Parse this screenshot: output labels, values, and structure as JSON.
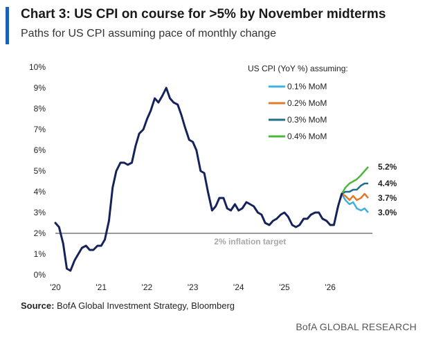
{
  "header": {
    "title": "Chart 3: US CPI on course for >5% by November midterms",
    "subtitle": "Paths for US CPI assuming pace of monthly change"
  },
  "footer": {
    "source_label": "Source:",
    "source_text": " BofA Global Investment Strategy, Bloomberg",
    "brand": "BofA GLOBAL RESEARCH"
  },
  "chart_data": {
    "type": "line",
    "x_range": [
      2020.0,
      2026.92
    ],
    "ylim": [
      0,
      10
    ],
    "y_ticks": [
      0,
      1,
      2,
      3,
      4,
      5,
      6,
      7,
      8,
      9,
      10
    ],
    "y_tick_labels": [
      "0%",
      "1%",
      "2%",
      "3%",
      "4%",
      "5%",
      "6%",
      "7%",
      "8%",
      "9%",
      "10%"
    ],
    "x_ticks": [
      2020,
      2021,
      2022,
      2023,
      2024,
      2025,
      2026
    ],
    "x_tick_labels": [
      "'20",
      "'21",
      "'22",
      "'23",
      "'24",
      "'25",
      "'26"
    ],
    "legend_title": "US CPI (YoY %) assuming:",
    "legend_position": "top-right",
    "grid": false,
    "reference_line": {
      "value": 2,
      "label": "2% inflation target",
      "color": "#999999"
    },
    "historical": {
      "color": "#15235a",
      "points": [
        [
          2020.0,
          2.5
        ],
        [
          2020.08,
          2.3
        ],
        [
          2020.17,
          1.5
        ],
        [
          2020.25,
          0.3
        ],
        [
          2020.33,
          0.2
        ],
        [
          2020.42,
          0.7
        ],
        [
          2020.5,
          1.0
        ],
        [
          2020.58,
          1.3
        ],
        [
          2020.67,
          1.4
        ],
        [
          2020.75,
          1.2
        ],
        [
          2020.83,
          1.2
        ],
        [
          2020.92,
          1.4
        ],
        [
          2021.0,
          1.4
        ],
        [
          2021.08,
          1.7
        ],
        [
          2021.17,
          2.6
        ],
        [
          2021.25,
          4.2
        ],
        [
          2021.33,
          5.0
        ],
        [
          2021.42,
          5.4
        ],
        [
          2021.5,
          5.4
        ],
        [
          2021.58,
          5.3
        ],
        [
          2021.67,
          5.4
        ],
        [
          2021.75,
          6.2
        ],
        [
          2021.83,
          6.8
        ],
        [
          2021.92,
          7.0
        ],
        [
          2022.0,
          7.5
        ],
        [
          2022.08,
          7.9
        ],
        [
          2022.17,
          8.5
        ],
        [
          2022.25,
          8.3
        ],
        [
          2022.33,
          8.6
        ],
        [
          2022.42,
          9.0
        ],
        [
          2022.5,
          8.5
        ],
        [
          2022.58,
          8.3
        ],
        [
          2022.67,
          8.2
        ],
        [
          2022.75,
          7.7
        ],
        [
          2022.83,
          7.1
        ],
        [
          2022.92,
          6.5
        ],
        [
          2023.0,
          6.4
        ],
        [
          2023.08,
          6.0
        ],
        [
          2023.17,
          5.0
        ],
        [
          2023.25,
          4.9
        ],
        [
          2023.33,
          4.0
        ],
        [
          2023.42,
          3.1
        ],
        [
          2023.5,
          3.3
        ],
        [
          2023.58,
          3.7
        ],
        [
          2023.67,
          3.7
        ],
        [
          2023.75,
          3.2
        ],
        [
          2023.83,
          3.1
        ],
        [
          2023.92,
          3.4
        ],
        [
          2024.0,
          3.1
        ],
        [
          2024.08,
          3.2
        ],
        [
          2024.17,
          3.5
        ],
        [
          2024.25,
          3.4
        ],
        [
          2024.33,
          3.3
        ],
        [
          2024.42,
          3.0
        ],
        [
          2024.5,
          2.9
        ],
        [
          2024.58,
          2.5
        ],
        [
          2024.67,
          2.4
        ],
        [
          2024.75,
          2.6
        ],
        [
          2024.83,
          2.7
        ],
        [
          2024.92,
          2.9
        ],
        [
          2025.0,
          3.0
        ],
        [
          2025.08,
          2.8
        ],
        [
          2025.17,
          2.4
        ],
        [
          2025.25,
          2.3
        ],
        [
          2025.33,
          2.4
        ],
        [
          2025.42,
          2.7
        ],
        [
          2025.5,
          2.7
        ],
        [
          2025.58,
          2.9
        ],
        [
          2025.67,
          3.0
        ],
        [
          2025.75,
          3.0
        ],
        [
          2025.83,
          2.7
        ],
        [
          2025.92,
          2.6
        ],
        [
          2026.0,
          2.4
        ],
        [
          2026.08,
          2.4
        ],
        [
          2026.17,
          3.3
        ],
        [
          2026.25,
          3.9
        ]
      ]
    },
    "series": [
      {
        "name": "0.1% MoM",
        "color": "#3fb0e0",
        "end_label": "3.0%",
        "points": [
          [
            2026.25,
            3.9
          ],
          [
            2026.33,
            3.6
          ],
          [
            2026.42,
            3.4
          ],
          [
            2026.5,
            3.5
          ],
          [
            2026.58,
            3.2
          ],
          [
            2026.67,
            3.1
          ],
          [
            2026.75,
            3.2
          ],
          [
            2026.83,
            3.0
          ]
        ]
      },
      {
        "name": "0.2% MoM",
        "color": "#e07b2b",
        "end_label": "3.7%",
        "points": [
          [
            2026.25,
            3.9
          ],
          [
            2026.33,
            3.8
          ],
          [
            2026.42,
            3.6
          ],
          [
            2026.5,
            3.8
          ],
          [
            2026.58,
            3.6
          ],
          [
            2026.67,
            3.7
          ],
          [
            2026.75,
            3.9
          ],
          [
            2026.83,
            3.7
          ]
        ]
      },
      {
        "name": "0.3% MoM",
        "color": "#1f6e8c",
        "end_label": "4.4%",
        "points": [
          [
            2026.25,
            3.9
          ],
          [
            2026.33,
            4.0
          ],
          [
            2026.42,
            4.0
          ],
          [
            2026.5,
            4.1
          ],
          [
            2026.58,
            4.1
          ],
          [
            2026.67,
            4.3
          ],
          [
            2026.75,
            4.4
          ],
          [
            2026.83,
            4.4
          ]
        ]
      },
      {
        "name": "0.4% MoM",
        "color": "#4cb83a",
        "end_label": "5.2%",
        "points": [
          [
            2026.25,
            3.9
          ],
          [
            2026.33,
            4.2
          ],
          [
            2026.42,
            4.4
          ],
          [
            2026.5,
            4.5
          ],
          [
            2026.58,
            4.6
          ],
          [
            2026.67,
            4.8
          ],
          [
            2026.75,
            5.0
          ],
          [
            2026.83,
            5.2
          ]
        ]
      }
    ]
  }
}
